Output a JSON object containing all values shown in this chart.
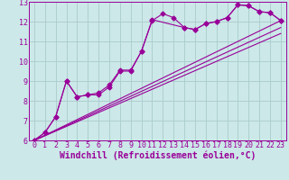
{
  "bg_color": "#cce8e8",
  "grid_color": "#aacccc",
  "line_color": "#990099",
  "xlabel": "Windchill (Refroidissement éolien,°C)",
  "xlim": [
    -0.5,
    23.5
  ],
  "ylim": [
    6,
    13
  ],
  "xticks": [
    0,
    1,
    2,
    3,
    4,
    5,
    6,
    7,
    8,
    9,
    10,
    11,
    12,
    13,
    14,
    15,
    16,
    17,
    18,
    19,
    20,
    21,
    22,
    23
  ],
  "yticks": [
    6,
    7,
    8,
    9,
    10,
    11,
    12,
    13
  ],
  "series1_x": [
    0,
    1,
    2,
    3,
    4,
    5,
    6,
    7,
    8,
    9,
    10,
    11,
    12,
    13,
    14,
    15,
    16,
    17,
    18,
    19,
    20,
    21,
    22,
    23
  ],
  "series1_y": [
    6.0,
    6.4,
    7.2,
    9.0,
    8.2,
    8.3,
    8.4,
    8.8,
    9.55,
    9.55,
    10.5,
    12.05,
    12.4,
    12.2,
    11.7,
    11.6,
    11.9,
    12.0,
    12.2,
    12.85,
    12.8,
    12.5,
    12.45,
    12.05
  ],
  "series2_x": [
    0,
    1,
    2,
    3,
    4,
    5,
    6,
    7,
    8,
    9,
    10,
    11,
    14,
    15,
    16,
    17,
    18,
    19,
    20,
    21,
    22,
    23
  ],
  "series2_y": [
    6.0,
    6.4,
    7.2,
    9.0,
    8.2,
    8.3,
    8.3,
    8.7,
    9.5,
    9.5,
    10.5,
    12.1,
    11.7,
    11.6,
    11.9,
    12.0,
    12.2,
    12.85,
    12.8,
    12.5,
    12.45,
    12.05
  ],
  "trend1_x": [
    0,
    23
  ],
  "trend1_y": [
    6.0,
    12.05
  ],
  "trend2_x": [
    0,
    23
  ],
  "trend2_y": [
    6.0,
    11.7
  ],
  "trend3_x": [
    0,
    23
  ],
  "trend3_y": [
    6.0,
    11.4
  ],
  "tick_fontsize": 6,
  "xlabel_fontsize": 7
}
